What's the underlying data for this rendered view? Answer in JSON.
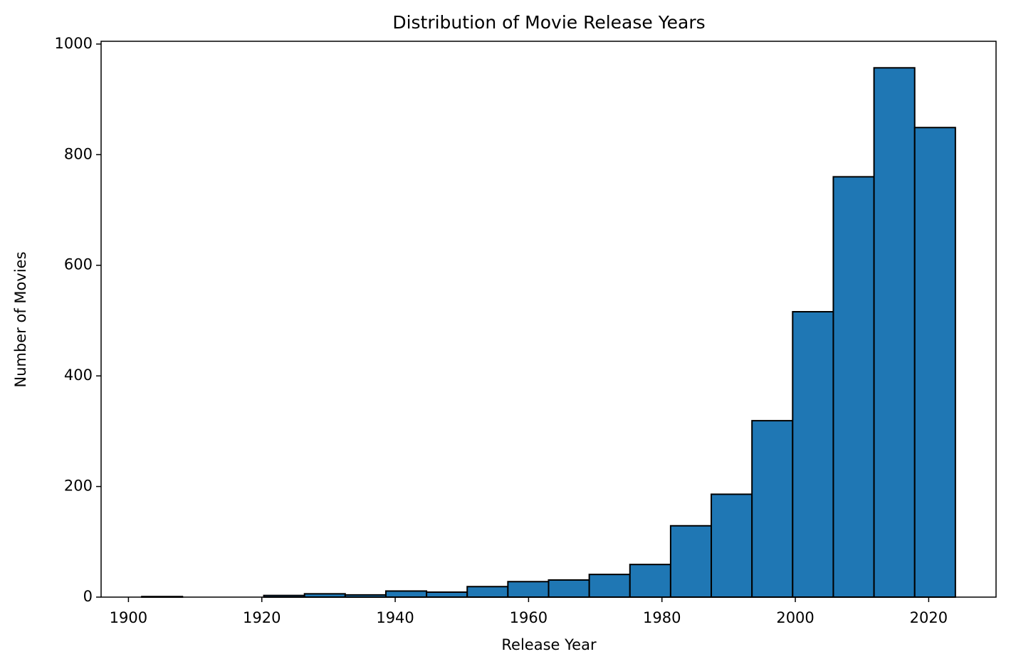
{
  "chart_data": {
    "type": "histogram",
    "title": "Distribution of Movie Release Years",
    "x_label": "Release Year",
    "y_label": "Number of Movies",
    "bins": [
      1902,
      1908.1,
      1914.2,
      1920.3,
      1926.4,
      1932.5,
      1938.6,
      1944.7,
      1950.8,
      1956.9,
      1963,
      1969.1,
      1975.2,
      1981.3,
      1987.4,
      1993.5,
      1999.6,
      2005.7,
      2011.8,
      2017.9,
      2024
    ],
    "values": [
      1,
      0,
      0,
      3,
      6,
      4,
      11,
      9,
      19,
      28,
      31,
      41,
      59,
      129,
      186,
      319,
      516,
      760,
      957,
      849
    ],
    "color": "#1f77b4",
    "edgecolor": "#000000",
    "xlim": [
      1895.9,
      2030.1
    ],
    "xticks": [
      1900,
      1920,
      1940,
      1960,
      1980,
      2000,
      2020
    ],
    "ylim": [
      0,
      1005
    ],
    "yticks": [
      0,
      200,
      400,
      600,
      800,
      1000
    ],
    "grid": false
  }
}
